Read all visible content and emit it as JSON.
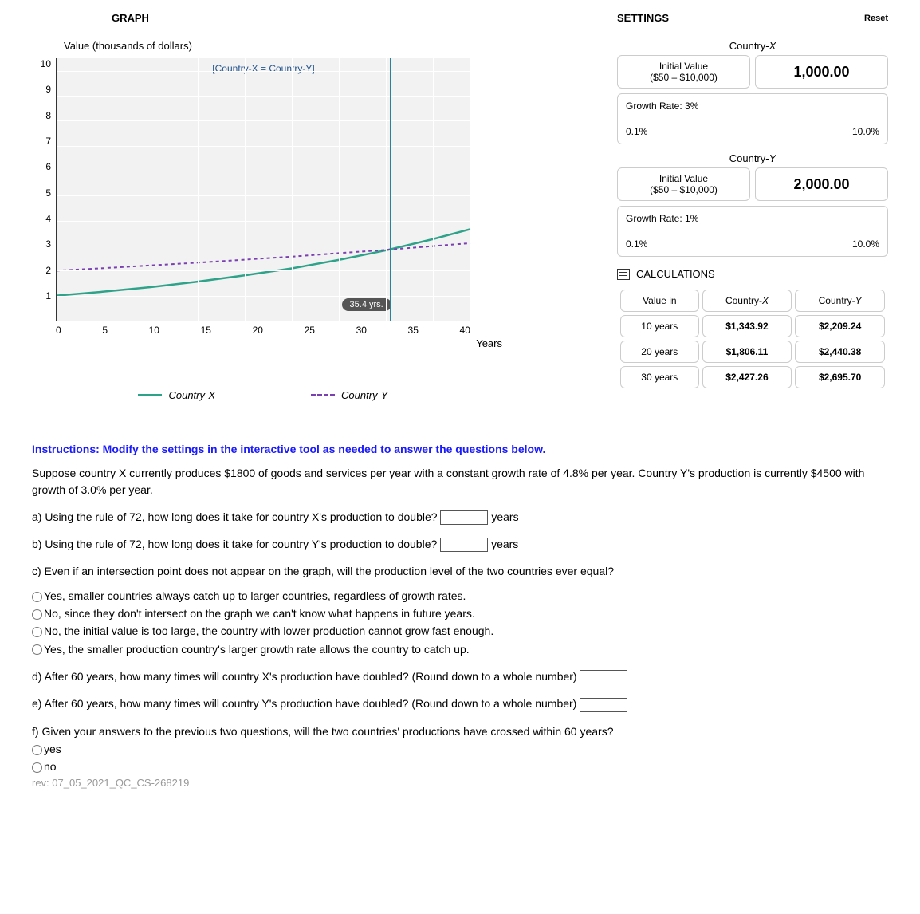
{
  "graph": {
    "title": "GRAPH",
    "ylabel": "Value (thousands of dollars)",
    "xlabel": "Years",
    "bracket_label": "[Country-X = Country-Y]",
    "marker_badge": "35.4 yrs.",
    "yticks": [
      "10",
      "9",
      "8",
      "7",
      "6",
      "5",
      "4",
      "3",
      "2",
      "1"
    ],
    "xticks": [
      "0",
      "5",
      "10",
      "15",
      "20",
      "25",
      "30",
      "35",
      "40"
    ],
    "xlim": [
      0,
      44
    ],
    "ylim": [
      0,
      10.5
    ],
    "marker_x": 35.4,
    "series": {
      "countryX": {
        "label_prefix": "Country-",
        "label_suffix": "X",
        "color": "#2fa38a",
        "style": "solid",
        "points": [
          [
            0,
            1.0
          ],
          [
            5,
            1.16
          ],
          [
            10,
            1.34
          ],
          [
            15,
            1.56
          ],
          [
            20,
            1.81
          ],
          [
            25,
            2.09
          ],
          [
            30,
            2.43
          ],
          [
            35,
            2.81
          ],
          [
            40,
            3.26
          ],
          [
            44,
            3.66
          ]
        ]
      },
      "countryY": {
        "label_prefix": "Country-",
        "label_suffix": "Y",
        "color": "#7a3fb0",
        "style": "dashed",
        "points": [
          [
            0,
            2.0
          ],
          [
            5,
            2.1
          ],
          [
            10,
            2.21
          ],
          [
            15,
            2.32
          ],
          [
            20,
            2.44
          ],
          [
            25,
            2.56
          ],
          [
            30,
            2.7
          ],
          [
            35,
            2.83
          ],
          [
            40,
            2.98
          ],
          [
            44,
            3.1
          ]
        ]
      }
    },
    "bg_color": "#f2f2f2",
    "grid_color": "#ffffff"
  },
  "settings": {
    "title": "SETTINGS",
    "reset": "Reset",
    "countryX": {
      "label_prefix": "Country-",
      "label_suffix": "X",
      "init_label": "Initial Value",
      "init_range": "($50 – $10,000)",
      "init_value": "1,000.00",
      "growth_label": "Growth Rate: 3%",
      "min": "0.1%",
      "max": "10.0%"
    },
    "countryY": {
      "label_prefix": "Country-",
      "label_suffix": "Y",
      "init_label": "Initial Value",
      "init_range": "($50 – $10,000)",
      "init_value": "2,000.00",
      "growth_label": "Growth Rate: 1%",
      "min": "0.1%",
      "max": "10.0%"
    }
  },
  "calculations": {
    "title": "CALCULATIONS",
    "headers": {
      "col1": "Value in",
      "col2_prefix": "Country-",
      "col2_suffix": "X",
      "col3_prefix": "Country-",
      "col3_suffix": "Y"
    },
    "rows": [
      {
        "label": "10 years",
        "x": "$1,343.92",
        "y": "$2,209.24"
      },
      {
        "label": "20 years",
        "x": "$1,806.11",
        "y": "$2,440.38"
      },
      {
        "label": "30 years",
        "x": "$2,427.26",
        "y": "$2,695.70"
      }
    ]
  },
  "questions": {
    "instructions": "Instructions: Modify the settings in the interactive tool as needed to answer the questions below.",
    "prompt": "Suppose country X currently produces $1800 of goods and services per year with a constant growth rate of 4.8% per year.  Country Y's production is currently $4500 with growth of 3.0% per year.",
    "a": "a) Using the rule of 72, how long does it take for country X's production to double?",
    "a_unit": "years",
    "b": "b) Using the rule of 72, how long does it take for country Y's production to double?",
    "b_unit": "years",
    "c": "c) Even if an intersection point does not appear on the graph, will the production level of the two countries ever equal?",
    "c_options": [
      "Yes, smaller countries always catch up to larger countries, regardless of growth rates.",
      "No, since they don't intersect on the graph we can't know what happens in future years.",
      "No, the initial value is too large, the country with lower production cannot grow fast enough.",
      "Yes, the smaller production country's larger growth rate allows the country to catch up."
    ],
    "d": "d) After 60 years, how many times will country X's production have doubled?  (Round down to a whole number)",
    "e": "e) After 60 years, how many times will country Y's production have doubled?  (Round down to a whole number)",
    "f": "f) Given your answers to the previous two questions, will the two countries' productions have crossed within 60 years?",
    "f_options": [
      "yes",
      "no"
    ],
    "rev": "rev: 07_05_2021_QC_CS-268219"
  }
}
